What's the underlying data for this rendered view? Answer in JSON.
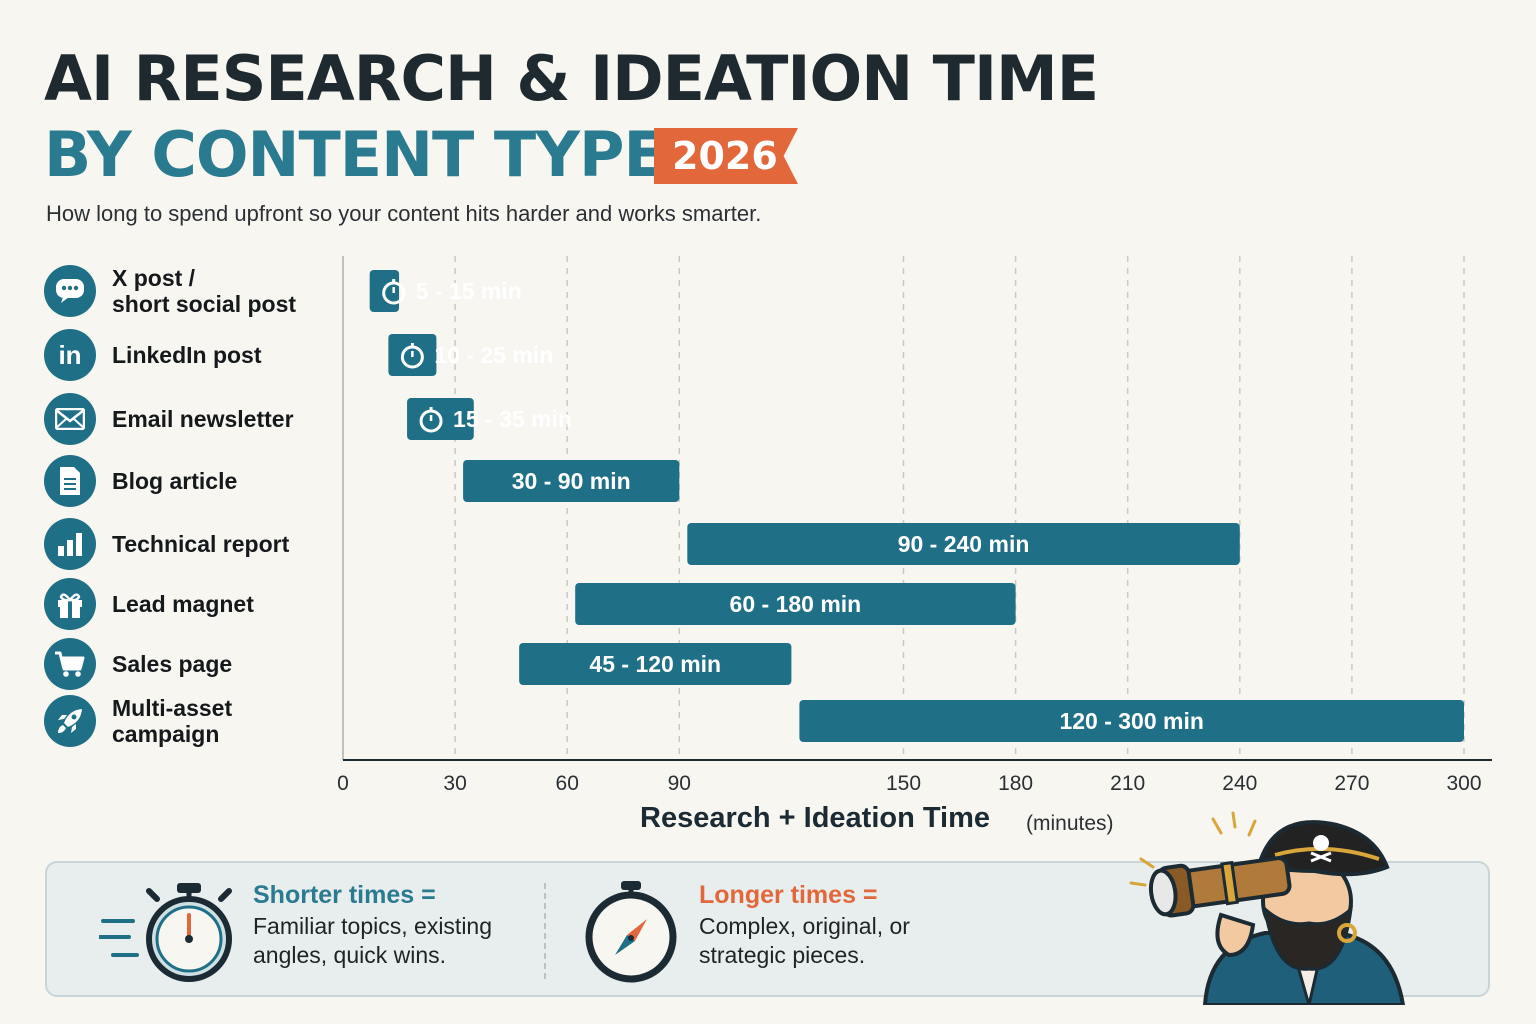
{
  "title_line1": "AI RESEARCH & IDEATION TIME",
  "title_line2": "BY CONTENT TYPE",
  "year": "2026",
  "subtitle": "How long to spend upfront so your content hits harder and works smarter.",
  "colors": {
    "bar": "#1f6f87",
    "title_accent": "#2a7a90",
    "badge": "#e2683c",
    "longer_accent": "#e2683c"
  },
  "rows": [
    {
      "label": "X post /\nshort social post",
      "icon": "speech-bubble-icon"
    },
    {
      "label": "LinkedIn post",
      "icon": "linkedin-icon"
    },
    {
      "label": "Email newsletter",
      "icon": "envelope-icon"
    },
    {
      "label": "Blog article",
      "icon": "document-icon"
    },
    {
      "label": "Technical report",
      "icon": "bar-chart-icon"
    },
    {
      "label": "Lead magnet",
      "icon": "gift-icon"
    },
    {
      "label": "Sales page",
      "icon": "shopping-cart-icon"
    },
    {
      "label": "Multi-asset campaign",
      "icon": "rocket-icon"
    }
  ],
  "chart_data": {
    "type": "bar",
    "orientation": "horizontal-range",
    "categories": [
      "X post / short social post",
      "LinkedIn post",
      "Email newsletter",
      "Blog article",
      "Technical report",
      "Lead magnet",
      "Sales page",
      "Multi-asset campaign"
    ],
    "ranges": [
      [
        5,
        15
      ],
      [
        10,
        25
      ],
      [
        15,
        35
      ],
      [
        30,
        90
      ],
      [
        90,
        240
      ],
      [
        60,
        180
      ],
      [
        45,
        120
      ],
      [
        120,
        300
      ]
    ],
    "data_labels": [
      "5 - 15 min",
      "10 - 25 min",
      "15 - 35 min",
      "30 - 90 min",
      "90 - 240 min",
      "60 - 180 min",
      "45 - 120 min",
      "120 - 300 min"
    ],
    "timer_icon_on_labels": [
      true,
      true,
      true,
      false,
      false,
      false,
      false,
      false
    ],
    "x_ticks": [
      0,
      30,
      60,
      90,
      150,
      180,
      210,
      240,
      270,
      300
    ],
    "x_tick_labels": [
      "0",
      "30",
      "60",
      "90",
      "150",
      "180",
      "210",
      "240",
      "270",
      "300"
    ],
    "xlim": [
      0,
      300
    ],
    "xlabel": "Research + Ideation Time",
    "xlabel_unit": "(minutes)",
    "grid": "vertical dashed"
  },
  "legend": {
    "shorter": {
      "head": "Shorter times =",
      "desc": "Familiar topics, existing angles, quick wins.",
      "icon": "stopwatch-icon"
    },
    "longer": {
      "head": "Longer times =",
      "desc": "Complex, original, or strategic pieces.",
      "icon": "compass-icon"
    }
  }
}
